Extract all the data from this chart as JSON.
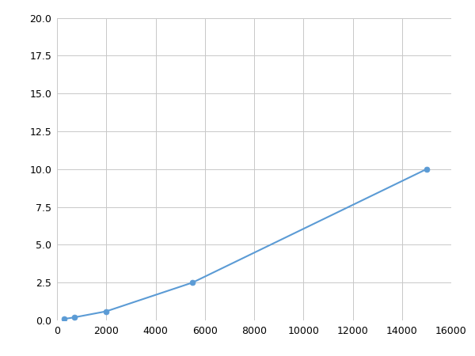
{
  "x": [
    300,
    700,
    2000,
    5500,
    15000
  ],
  "y": [
    0.1,
    0.2,
    0.6,
    2.5,
    10.0
  ],
  "line_color": "#5b9bd5",
  "marker_color": "#5b9bd5",
  "marker_size": 5,
  "xlim": [
    0,
    16000
  ],
  "ylim": [
    0,
    20
  ],
  "xticks": [
    0,
    2000,
    4000,
    6000,
    8000,
    10000,
    12000,
    14000,
    16000
  ],
  "yticks": [
    0.0,
    2.5,
    5.0,
    7.5,
    10.0,
    12.5,
    15.0,
    17.5,
    20.0
  ],
  "grid": true,
  "background_color": "#ffffff",
  "line_width": 1.5,
  "figsize": [
    6.0,
    4.5
  ],
  "dpi": 100
}
